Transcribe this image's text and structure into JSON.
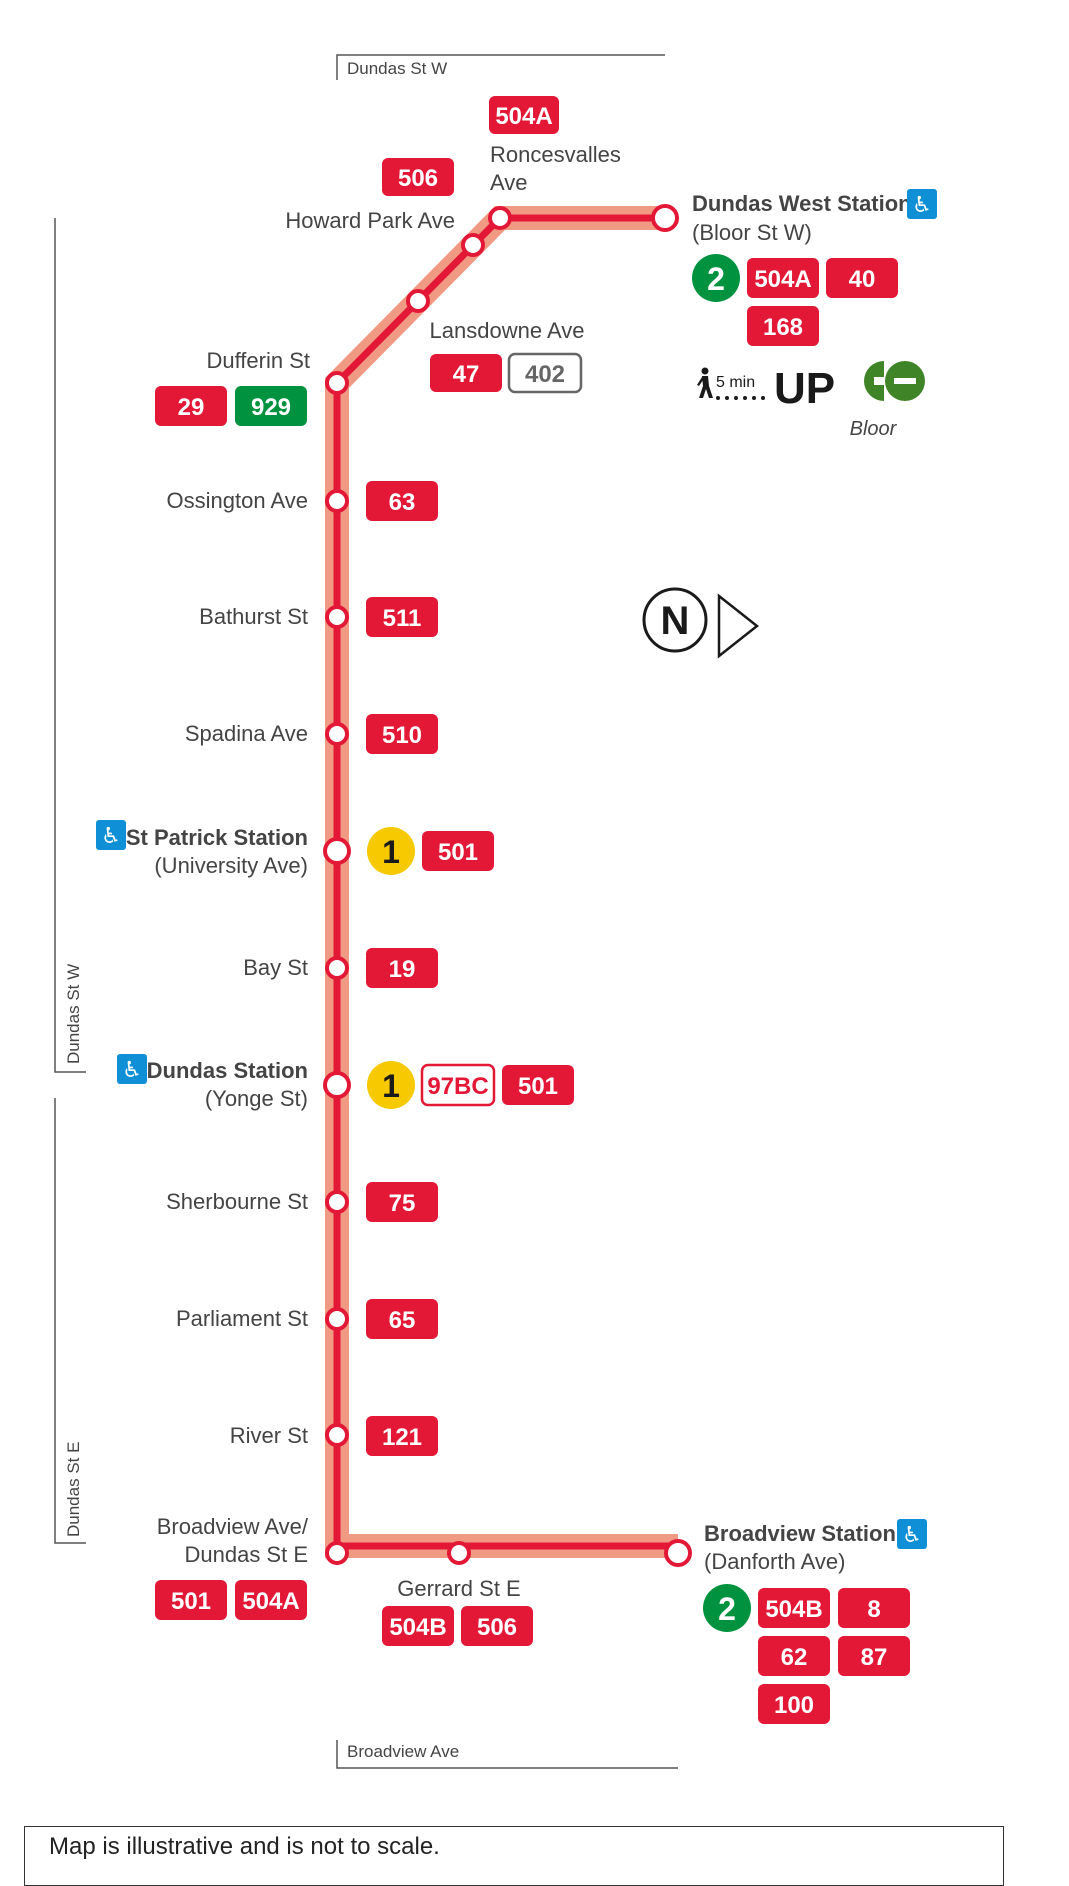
{
  "colors": {
    "route_red": "#e31837",
    "route_halo": "#f19a83",
    "line2_green": "#00923f",
    "line1_yellow": "#f7c900",
    "go_green": "#3f8427",
    "accessibility_blue": "#0f8fd6",
    "outline_gray": "#666666"
  },
  "streets": {
    "top": "Dundas St W",
    "bottom": "Broadview Ave",
    "side_upper": "Dundas St W",
    "side_lower": "Dundas St E"
  },
  "north": {
    "letter": "N"
  },
  "stops": [
    {
      "id": "roncesvalles",
      "name": [
        "Roncesvalles",
        "Ave"
      ],
      "routes": [
        {
          "label": "504A",
          "style": "red"
        }
      ]
    },
    {
      "id": "howard-park",
      "name": [
        "Howard Park Ave"
      ],
      "routes": [
        {
          "label": "506",
          "style": "red"
        }
      ]
    },
    {
      "id": "lansdowne",
      "name": [
        "Lansdowne Ave"
      ],
      "routes": [
        {
          "label": "47",
          "style": "red"
        },
        {
          "label": "402",
          "style": "outline-gray"
        }
      ]
    },
    {
      "id": "dufferin",
      "name": [
        "Dufferin St"
      ],
      "routes": [
        {
          "label": "29",
          "style": "red"
        },
        {
          "label": "929",
          "style": "green"
        }
      ]
    },
    {
      "id": "ossington",
      "name": [
        "Ossington Ave"
      ],
      "routes": [
        {
          "label": "63",
          "style": "red"
        }
      ]
    },
    {
      "id": "bathurst",
      "name": [
        "Bathurst St"
      ],
      "routes": [
        {
          "label": "511",
          "style": "red"
        }
      ]
    },
    {
      "id": "spadina",
      "name": [
        "Spadina Ave"
      ],
      "routes": [
        {
          "label": "510",
          "style": "red"
        }
      ]
    },
    {
      "id": "st-patrick",
      "name": [
        "St Patrick Station",
        "(University Ave)"
      ],
      "accessible": true,
      "subway_line": "1",
      "routes": [
        {
          "label": "501",
          "style": "red"
        }
      ]
    },
    {
      "id": "bay",
      "name": [
        "Bay St"
      ],
      "routes": [
        {
          "label": "19",
          "style": "red"
        }
      ]
    },
    {
      "id": "dundas",
      "name": [
        "Dundas Station",
        "(Yonge St)"
      ],
      "accessible": true,
      "subway_line": "1",
      "routes": [
        {
          "label": "97BC",
          "style": "outline-red"
        },
        {
          "label": "501",
          "style": "red"
        }
      ]
    },
    {
      "id": "sherbourne",
      "name": [
        "Sherbourne St"
      ],
      "routes": [
        {
          "label": "75",
          "style": "red"
        }
      ]
    },
    {
      "id": "parliament",
      "name": [
        "Parliament St"
      ],
      "routes": [
        {
          "label": "65",
          "style": "red"
        }
      ]
    },
    {
      "id": "river",
      "name": [
        "River St"
      ],
      "routes": [
        {
          "label": "121",
          "style": "red"
        }
      ]
    },
    {
      "id": "broadview-dundas",
      "name": [
        "Broadview Ave/",
        "Dundas St E"
      ],
      "routes": [
        {
          "label": "501",
          "style": "red"
        },
        {
          "label": "504A",
          "style": "red"
        }
      ]
    },
    {
      "id": "gerrard",
      "name": [
        "Gerrard St E"
      ],
      "routes": [
        {
          "label": "504B",
          "style": "red"
        },
        {
          "label": "506",
          "style": "red"
        }
      ]
    }
  ],
  "terminals": [
    {
      "id": "dundas-west",
      "name": [
        "Dundas West Station",
        "(Bloor St W)"
      ],
      "accessible": true,
      "subway_line": "2",
      "routes": [
        {
          "label": "504A",
          "style": "red"
        },
        {
          "label": "40",
          "style": "red"
        },
        {
          "label": "168",
          "style": "red"
        }
      ],
      "connection": {
        "walk_time": "5 min",
        "up_label": "UP",
        "go_caption": "Bloor"
      }
    },
    {
      "id": "broadview-station",
      "name": [
        "Broadview Station",
        "(Danforth Ave)"
      ],
      "accessible": true,
      "subway_line": "2",
      "routes": [
        {
          "label": "504B",
          "style": "red"
        },
        {
          "label": "8",
          "style": "red"
        },
        {
          "label": "62",
          "style": "red"
        },
        {
          "label": "87",
          "style": "red"
        },
        {
          "label": "100",
          "style": "red"
        }
      ]
    }
  ],
  "footer": {
    "text": "Map is illustrative and is not to scale."
  }
}
